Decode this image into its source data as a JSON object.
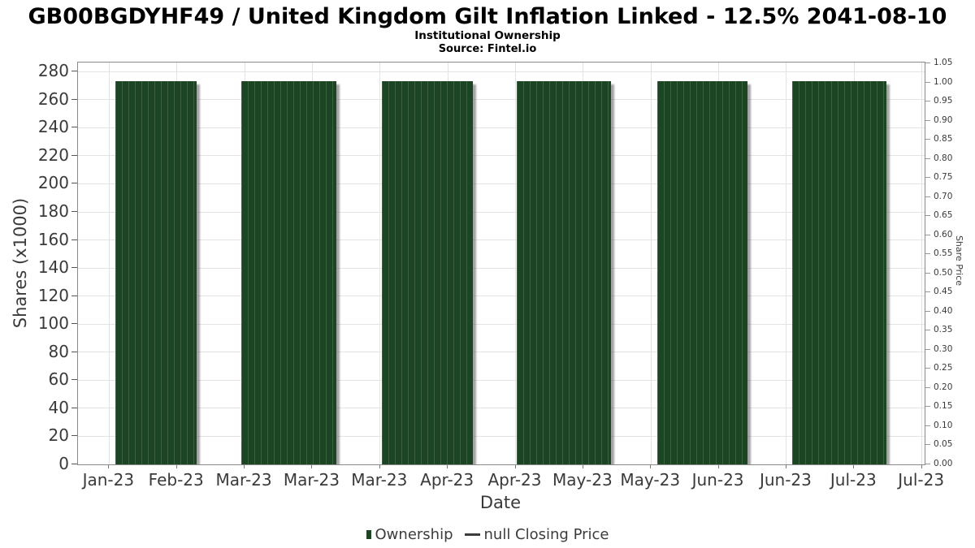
{
  "chart_data": {
    "type": "bar",
    "title": "GB00BGDYHF49 / United Kingdom Gilt Inflation Linked - 12.5% 2041-08-10",
    "subtitle": "Institutional Ownership",
    "source": "Source: Fintel.io",
    "xlabel": "Date",
    "ylabel": "Shares (x1000)",
    "ylabel_right": "Share Price",
    "grid": true,
    "legend_position": "bottom-center",
    "x_tick_labels": [
      "Jan-23",
      "Feb-23",
      "Mar-23",
      "Mar-23",
      "Mar-23",
      "Apr-23",
      "Apr-23",
      "May-23",
      "May-23",
      "Jun-23",
      "Jun-23",
      "Jul-23",
      "Jul-23"
    ],
    "x_tick_start_frac": 0.0368,
    "x_tick_step_frac": 0.08,
    "y_left_ticks": [
      0,
      20,
      40,
      60,
      80,
      100,
      120,
      140,
      160,
      180,
      200,
      220,
      240,
      260,
      280
    ],
    "ylim_left": [
      0,
      286.5
    ],
    "y_right_ticks": [
      0,
      0.05,
      0.1,
      0.15,
      0.2,
      0.25,
      0.3,
      0.35,
      0.4,
      0.45,
      0.5,
      0.55,
      0.6,
      0.65,
      0.7,
      0.75,
      0.8,
      0.85,
      0.9,
      0.95,
      1.0,
      1.05
    ],
    "ylim_right": [
      0,
      1.053
    ],
    "series": [
      {
        "name": "Ownership",
        "type": "bar",
        "values": [
          273,
          273,
          273,
          273,
          273,
          273
        ],
        "bar_spans": [
          [
            0.0441,
            0.1401
          ],
          [
            0.1929,
            0.3052
          ],
          [
            0.3589,
            0.4664
          ],
          [
            0.5182,
            0.6296
          ],
          [
            0.6843,
            0.7908
          ],
          [
            0.8435,
            0.9549
          ]
        ]
      },
      {
        "name": "null Closing Price",
        "type": "line",
        "values": []
      }
    ],
    "legend": [
      {
        "label": "Ownership",
        "marker": "square"
      },
      {
        "label": "null Closing Price",
        "marker": "line"
      }
    ],
    "colors": {
      "bar_fill": "#1c4523",
      "bar_hatch": "#3f5e46",
      "bar_shadow": "rgba(90,90,90,0.55)",
      "grid": "#e3e3e3",
      "axis_border": "#8a8a8a",
      "tick_text": "#3a3a3a",
      "tick_mark": "#555555",
      "title_text": "#000000",
      "legend_text": "#3c3c3c"
    }
  }
}
